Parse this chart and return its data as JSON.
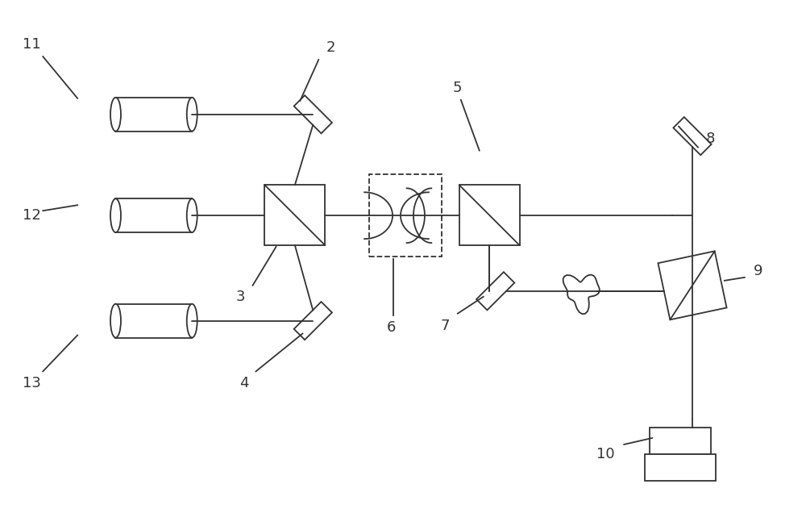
{
  "bg_color": "#ffffff",
  "line_color": "#333333",
  "lw": 1.3
}
